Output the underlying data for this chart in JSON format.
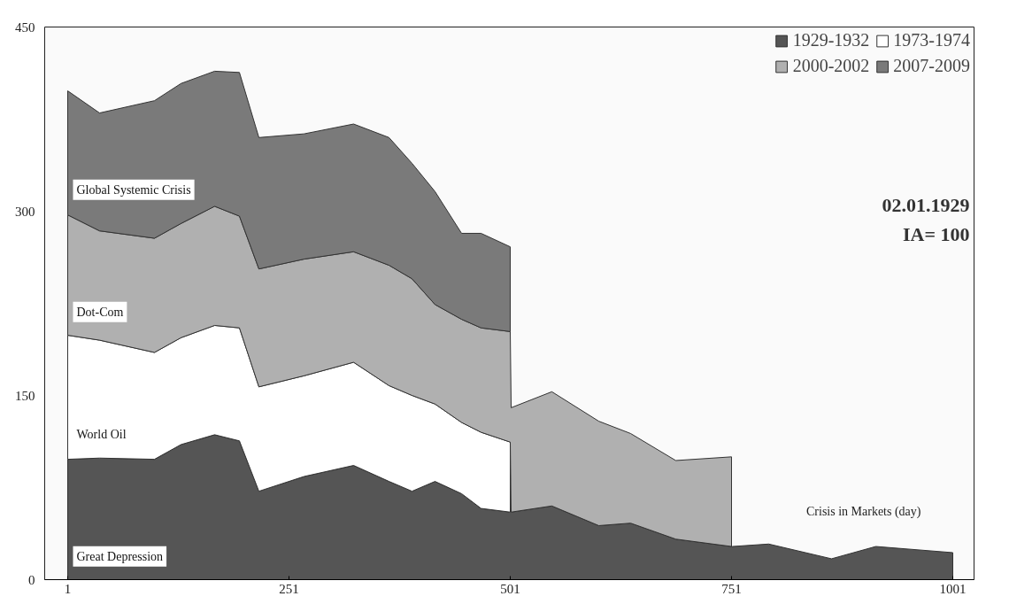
{
  "chart_data": {
    "type": "area",
    "stacked": true,
    "xlabel": "Crisis in Markets (day)",
    "x": [
      1,
      37,
      99,
      129,
      167,
      195,
      217,
      268,
      324,
      364,
      390,
      416,
      446,
      468,
      501,
      502,
      548,
      601,
      637,
      688,
      751,
      752,
      793,
      864,
      914,
      1001
    ],
    "xlim": [
      -25,
      1025
    ],
    "xticks": [
      1,
      251,
      501,
      751,
      1001
    ],
    "ylim": [
      0,
      450
    ],
    "yticks": [
      0,
      150,
      300,
      450
    ],
    "legend": "top right",
    "grid": false,
    "series": [
      {
        "name": "1929-1932",
        "color": "#555555",
        "values": [
          98,
          99,
          98,
          110,
          118,
          113,
          72,
          84,
          93,
          80,
          72,
          80,
          70,
          58,
          55,
          55,
          60,
          44,
          46,
          33,
          27,
          27,
          29,
          17,
          27,
          22
        ]
      },
      {
        "name": "1973-1974",
        "color": "#ffffff",
        "values": [
          101,
          96,
          87,
          87,
          89,
          92,
          85,
          82,
          84,
          78,
          78,
          63,
          58,
          62,
          57,
          null,
          null,
          null,
          null,
          null,
          null,
          null,
          null,
          null,
          null,
          null
        ]
      },
      {
        "name": "2000-2002",
        "color": "#b0b0b0",
        "values": [
          98,
          89,
          93,
          93,
          97,
          91,
          96,
          95,
          90,
          98,
          95,
          81,
          84,
          85,
          90,
          85,
          93,
          85,
          73,
          64,
          73,
          null,
          null,
          null,
          null,
          null
        ]
      },
      {
        "name": "2007-2009",
        "color": "#7a7a7a",
        "values": [
          101,
          96,
          112,
          114,
          110,
          117,
          107,
          102,
          104,
          104,
          94,
          92,
          70,
          77,
          69,
          null,
          null,
          null,
          null,
          null,
          null,
          null,
          null,
          null,
          null,
          null
        ]
      }
    ],
    "annotations": [
      "Global Systemic Crisis",
      "Dot-Com",
      "World Oil",
      "Great Depression",
      "02.01.1929",
      "IA= 100"
    ]
  }
}
